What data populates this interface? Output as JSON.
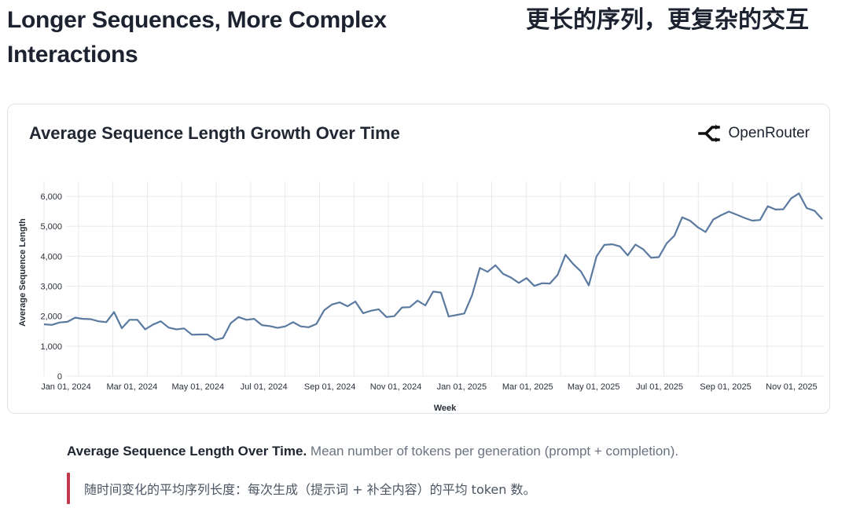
{
  "header": {
    "title_en": "Longer Sequences, More Complex Interactions",
    "title_zh": "更长的序列，更复杂的交互"
  },
  "brand": {
    "name": "OpenRouter",
    "icon": "openrouter-logo-icon"
  },
  "caption": {
    "bold": "Average Sequence Length Over Time.",
    "text": "Mean number of tokens per generation (prompt + completion).",
    "zh": "随时间变化的平均序列长度：每次生成（提示词 + 补全内容）的平均 token 数。"
  },
  "colors": {
    "line": "#5b7aa0",
    "grid": "#e8eaee",
    "quote_bar": "#c0394b"
  },
  "chart_data": {
    "type": "line",
    "title": "Average Sequence Length Growth Over Time",
    "xlabel": "Week",
    "ylabel": "Average Sequence Length",
    "ylim": [
      0,
      6500
    ],
    "yticks": [
      0,
      1000,
      2000,
      3000,
      4000,
      5000,
      6000
    ],
    "ytick_labels": [
      "0",
      "1,000",
      "2,000",
      "3,000",
      "4,000",
      "5,000",
      "6,000"
    ],
    "xticks": [
      "Jan 01, 2024",
      "Mar 01, 2024",
      "May 01, 2024",
      "Jul 01, 2024",
      "Sep 01, 2024",
      "Nov 01, 2024",
      "Jan 01, 2025",
      "Mar 01, 2025",
      "May 01, 2025",
      "Jul 01, 2025",
      "Sep 01, 2025",
      "Nov 01, 2025"
    ],
    "grid": true,
    "series": [
      {
        "values": [
          1730,
          1710,
          1790,
          1810,
          1950,
          1910,
          1900,
          1830,
          1800,
          2140,
          1600,
          1880,
          1880,
          1560,
          1720,
          1830,
          1620,
          1560,
          1590,
          1380,
          1390,
          1390,
          1210,
          1270,
          1770,
          1970,
          1880,
          1910,
          1700,
          1670,
          1610,
          1660,
          1800,
          1660,
          1630,
          1740,
          2200,
          2390,
          2460,
          2330,
          2490,
          2100,
          2180,
          2230,
          1970,
          2000,
          2290,
          2300,
          2520,
          2360,
          2820,
          2790,
          1990,
          2040,
          2090,
          2700,
          3610,
          3480,
          3700,
          3410,
          3290,
          3110,
          3270,
          3010,
          3100,
          3090,
          3380,
          4050,
          3740,
          3490,
          3030,
          4000,
          4380,
          4400,
          4330,
          4030,
          4390,
          4230,
          3950,
          3970,
          4430,
          4690,
          5300,
          5190,
          4970,
          4810,
          5230,
          5370,
          5490,
          5390,
          5280,
          5190,
          5210,
          5670,
          5560,
          5570,
          5930,
          6100,
          5610,
          5520,
          5240
        ]
      }
    ]
  }
}
